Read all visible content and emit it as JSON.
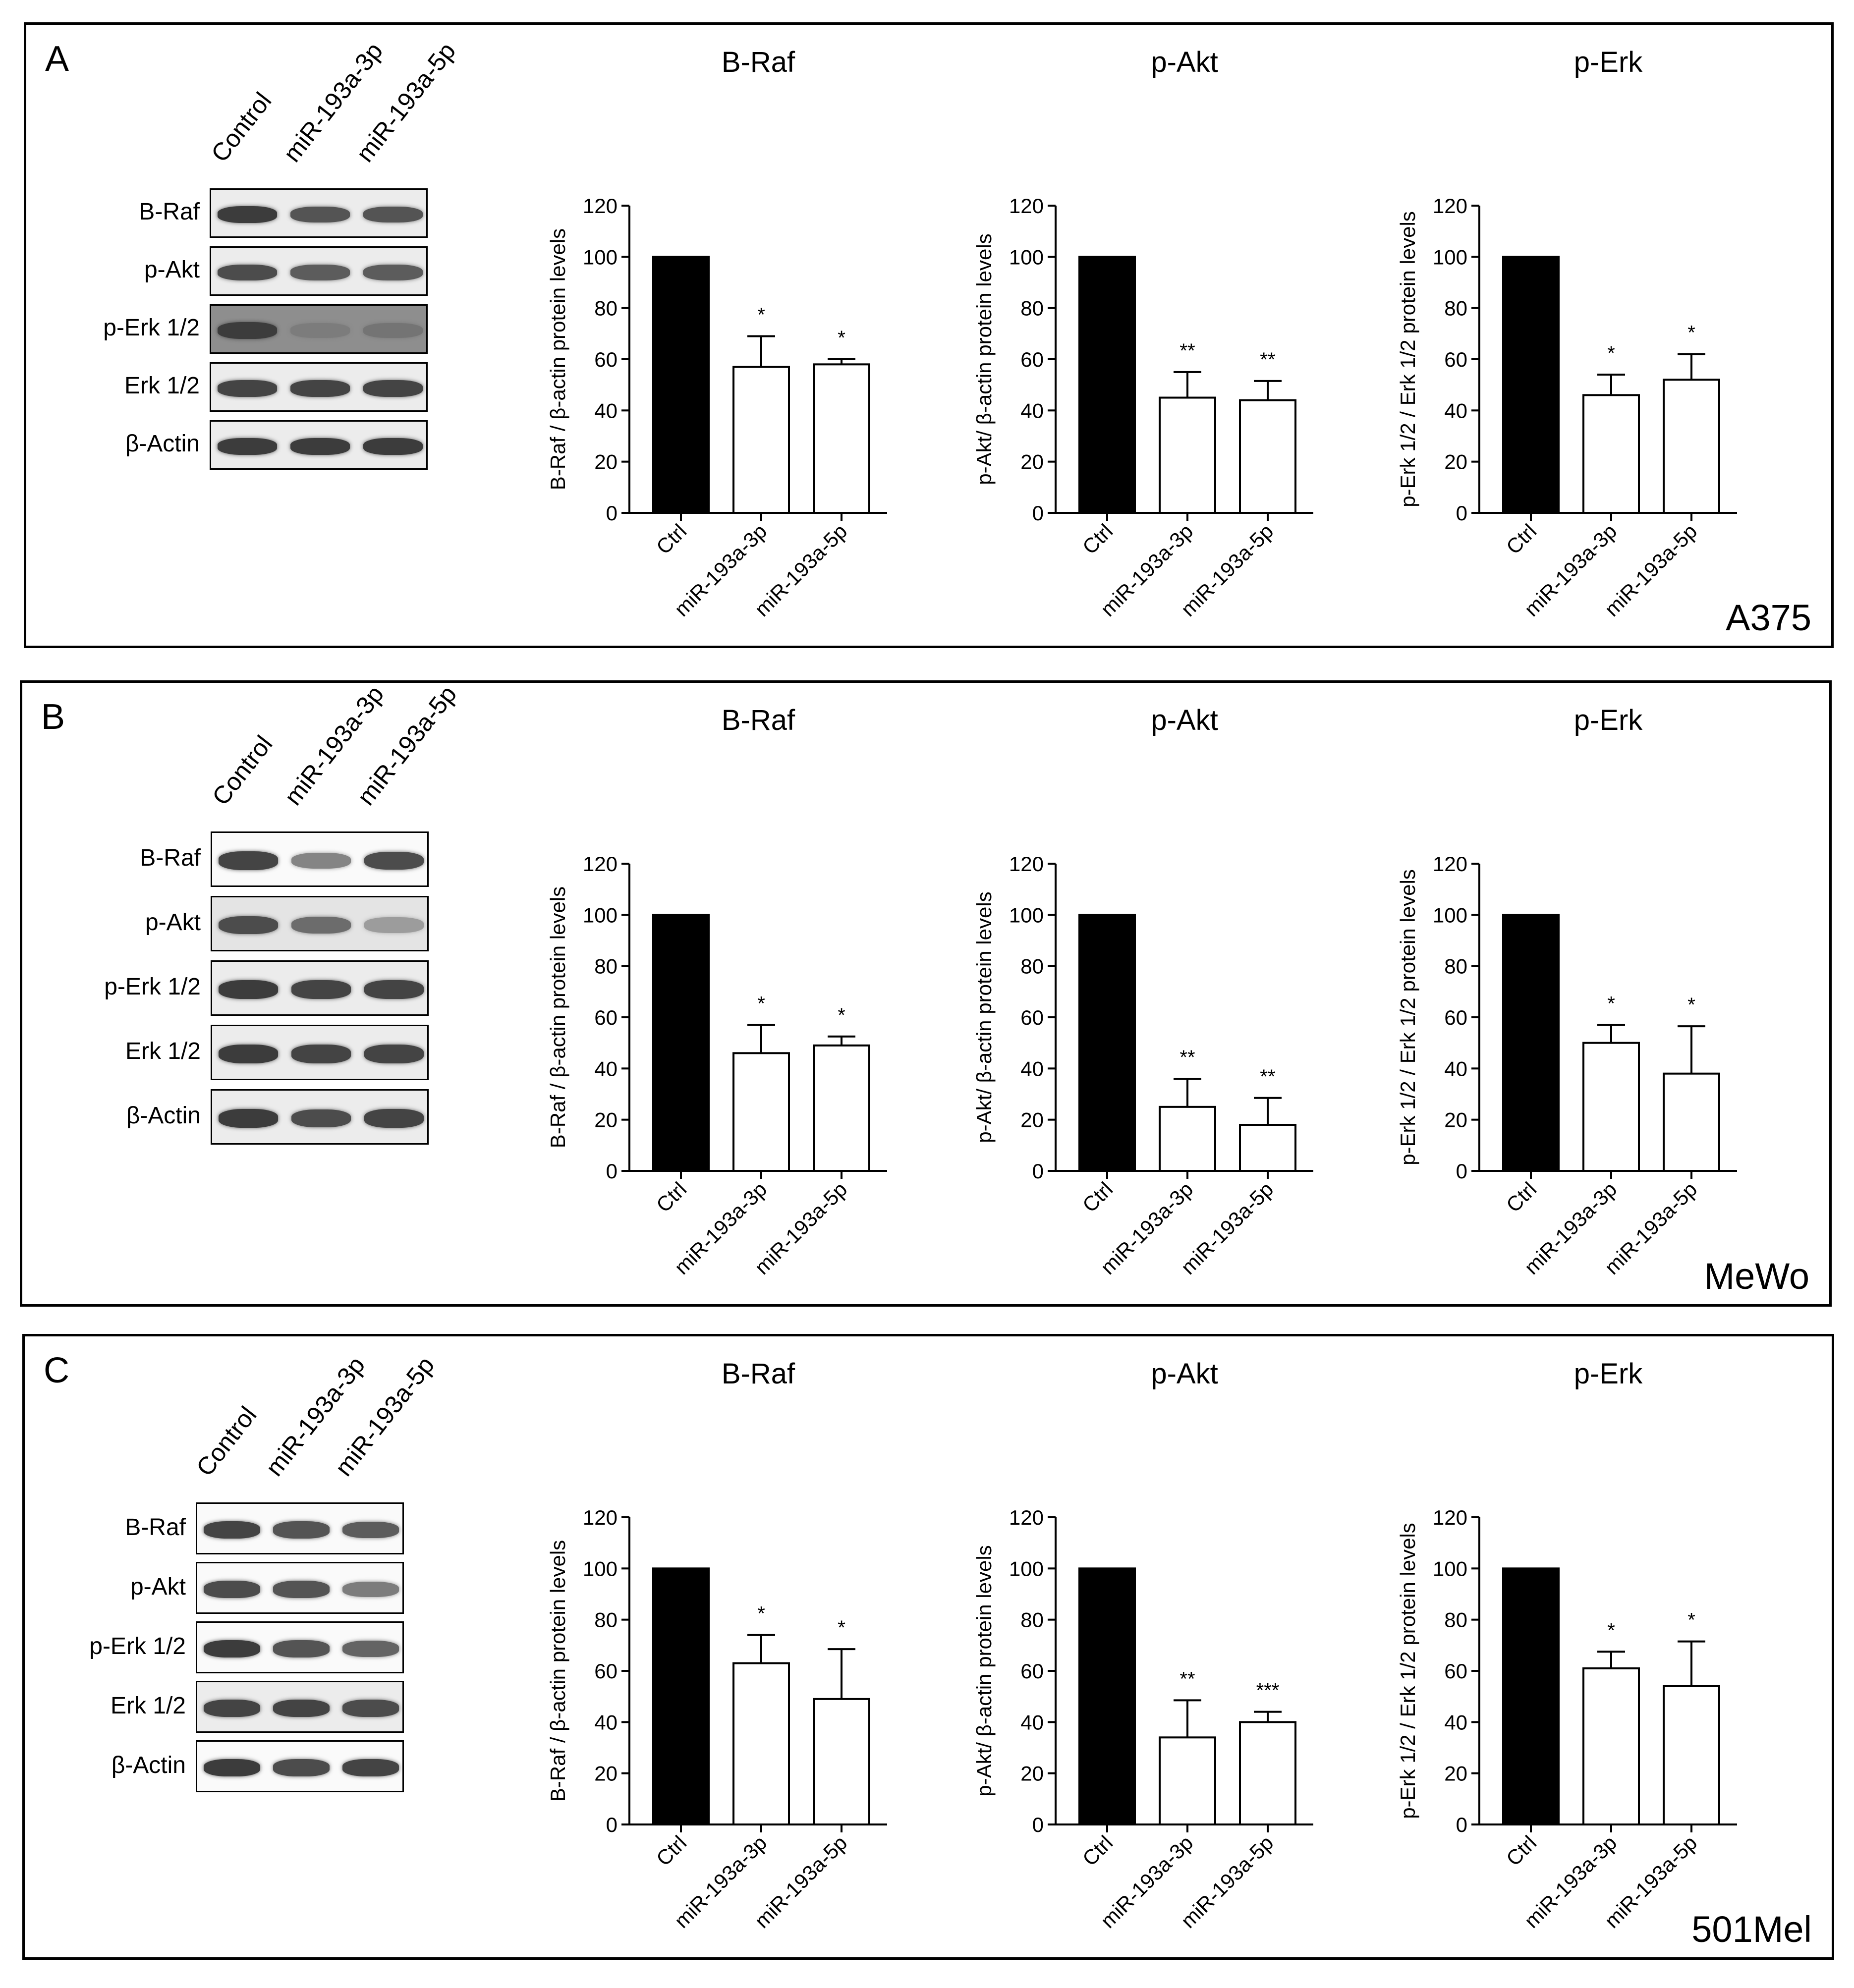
{
  "figure": {
    "panels": [
      {
        "letter": "A",
        "cell_line": "A375",
        "blot": {
          "lanes": [
            "Control",
            "miR-193a-3p",
            "miR-193a-5p"
          ],
          "rows": [
            {
              "label": "B-Raf",
              "intensities": [
                1.0,
                0.85,
                0.85
              ],
              "bg": "light"
            },
            {
              "label": "p-Akt",
              "intensities": [
                0.9,
                0.8,
                0.8
              ],
              "bg": "light"
            },
            {
              "label": "p-Erk 1/2",
              "intensities": [
                1.0,
                0.6,
                0.65
              ],
              "bg": "dark"
            },
            {
              "label": "Erk 1/2",
              "intensities": [
                0.95,
                0.95,
                0.95
              ],
              "bg": "light"
            },
            {
              "label": "β-Actin",
              "intensities": [
                1.0,
                1.0,
                1.0
              ],
              "bg": "light"
            }
          ]
        }
      },
      {
        "letter": "B",
        "cell_line": "MeWo",
        "blot": {
          "lanes": [
            "Control",
            "miR-193a-3p",
            "miR-193a-5p"
          ],
          "rows": [
            {
              "label": "B-Raf",
              "intensities": [
                0.95,
                0.55,
                0.9
              ],
              "bg": "white"
            },
            {
              "label": "p-Akt",
              "intensities": [
                0.9,
                0.7,
                0.4
              ],
              "bg": "mottled"
            },
            {
              "label": "p-Erk 1/2",
              "intensities": [
                1.0,
                0.95,
                0.95
              ],
              "bg": "light"
            },
            {
              "label": "Erk 1/2",
              "intensities": [
                1.0,
                0.95,
                0.95
              ],
              "bg": "light"
            },
            {
              "label": "β-Actin",
              "intensities": [
                1.0,
                0.9,
                0.95
              ],
              "bg": "light"
            }
          ]
        }
      },
      {
        "letter": "C",
        "cell_line": "501Mel",
        "blot": {
          "lanes": [
            "Control",
            "miR-193a-3p",
            "miR-193a-5p"
          ],
          "rows": [
            {
              "label": "B-Raf",
              "intensities": [
                0.95,
                0.85,
                0.8
              ],
              "bg": "white"
            },
            {
              "label": "p-Akt",
              "intensities": [
                0.9,
                0.85,
                0.6
              ],
              "bg": "white"
            },
            {
              "label": "p-Erk 1/2",
              "intensities": [
                1.0,
                0.85,
                0.75
              ],
              "bg": "white"
            },
            {
              "label": "Erk 1/2",
              "intensities": [
                0.95,
                0.95,
                0.9
              ],
              "bg": "light"
            },
            {
              "label": "β-Actin",
              "intensities": [
                1.0,
                0.9,
                0.95
              ],
              "bg": "white"
            }
          ]
        }
      }
    ]
  },
  "chart_data": [
    {
      "panel": "A",
      "type": "bar",
      "title": "B-Raf",
      "ylabel": "B-Raf / β-actin protein levels",
      "categories": [
        "Ctrl",
        "miR-193a-3p",
        "miR-193a-5p"
      ],
      "values": [
        100,
        57,
        58
      ],
      "errors": [
        0,
        12,
        2
      ],
      "significance": [
        "",
        "*",
        "*"
      ],
      "ylim": [
        0,
        120
      ],
      "yticks": [
        0,
        20,
        40,
        60,
        80,
        100,
        120
      ]
    },
    {
      "panel": "A",
      "type": "bar",
      "title": "p-Akt",
      "ylabel": "p-Akt/ β-actin protein levels",
      "categories": [
        "Ctrl",
        "miR-193a-3p",
        "miR-193a-5p"
      ],
      "values": [
        100,
        45,
        44
      ],
      "errors": [
        0,
        10,
        7.5
      ],
      "significance": [
        "",
        "**",
        "**"
      ],
      "ylim": [
        0,
        120
      ],
      "yticks": [
        0,
        20,
        40,
        60,
        80,
        100,
        120
      ]
    },
    {
      "panel": "A",
      "type": "bar",
      "title": "p-Erk",
      "ylabel": "p-Erk 1/2 / Erk 1/2 protein levels",
      "categories": [
        "Ctrl",
        "miR-193a-3p",
        "miR-193a-5p"
      ],
      "values": [
        100,
        46,
        52
      ],
      "errors": [
        0,
        8,
        10
      ],
      "significance": [
        "",
        "*",
        "*"
      ],
      "ylim": [
        0,
        120
      ],
      "yticks": [
        0,
        20,
        40,
        60,
        80,
        100,
        120
      ]
    },
    {
      "panel": "B",
      "type": "bar",
      "title": "B-Raf",
      "ylabel": "B-Raf / β-actin protein levels",
      "categories": [
        "Ctrl",
        "miR-193a-3p",
        "miR-193a-5p"
      ],
      "values": [
        100,
        46,
        49
      ],
      "errors": [
        0,
        11,
        3.5
      ],
      "significance": [
        "",
        "*",
        "*"
      ],
      "ylim": [
        0,
        120
      ],
      "yticks": [
        0,
        20,
        40,
        60,
        80,
        100,
        120
      ]
    },
    {
      "panel": "B",
      "type": "bar",
      "title": "p-Akt",
      "ylabel": "p-Akt/ β-actin protein levels",
      "categories": [
        "Ctrl",
        "miR-193a-3p",
        "miR-193a-5p"
      ],
      "values": [
        100,
        25,
        18
      ],
      "errors": [
        0,
        11,
        10.5
      ],
      "significance": [
        "",
        "**",
        "**"
      ],
      "ylim": [
        0,
        120
      ],
      "yticks": [
        0,
        20,
        40,
        60,
        80,
        100,
        120
      ]
    },
    {
      "panel": "B",
      "type": "bar",
      "title": "p-Erk",
      "ylabel": "p-Erk 1/2 / Erk 1/2 protein levels",
      "categories": [
        "Ctrl",
        "miR-193a-3p",
        "miR-193a-5p"
      ],
      "values": [
        100,
        50,
        38
      ],
      "errors": [
        0,
        7,
        18.5
      ],
      "significance": [
        "",
        "*",
        "*"
      ],
      "ylim": [
        0,
        120
      ],
      "yticks": [
        0,
        20,
        40,
        60,
        80,
        100,
        120
      ]
    },
    {
      "panel": "C",
      "type": "bar",
      "title": "B-Raf",
      "ylabel": "B-Raf / β-actin protein levels",
      "categories": [
        "Ctrl",
        "miR-193a-3p",
        "miR-193a-5p"
      ],
      "values": [
        100,
        63,
        49
      ],
      "errors": [
        0,
        11,
        19.5
      ],
      "significance": [
        "",
        "*",
        "*"
      ],
      "ylim": [
        0,
        120
      ],
      "yticks": [
        0,
        20,
        40,
        60,
        80,
        100,
        120
      ]
    },
    {
      "panel": "C",
      "type": "bar",
      "title": "p-Akt",
      "ylabel": "p-Akt/ β-actin protein levels",
      "categories": [
        "Ctrl",
        "miR-193a-3p",
        "miR-193a-5p"
      ],
      "values": [
        100,
        34,
        40
      ],
      "errors": [
        0,
        14.5,
        4
      ],
      "significance": [
        "",
        "**",
        "***"
      ],
      "ylim": [
        0,
        120
      ],
      "yticks": [
        0,
        20,
        40,
        60,
        80,
        100,
        120
      ]
    },
    {
      "panel": "C",
      "type": "bar",
      "title": "p-Erk",
      "ylabel": "p-Erk 1/2 / Erk 1/2 protein levels",
      "categories": [
        "Ctrl",
        "miR-193a-3p",
        "miR-193a-5p"
      ],
      "values": [
        100,
        61,
        54
      ],
      "errors": [
        0,
        6.5,
        17.5
      ],
      "significance": [
        "",
        "*",
        "*"
      ],
      "ylim": [
        0,
        120
      ],
      "yticks": [
        0,
        20,
        40,
        60,
        80,
        100,
        120
      ]
    }
  ]
}
